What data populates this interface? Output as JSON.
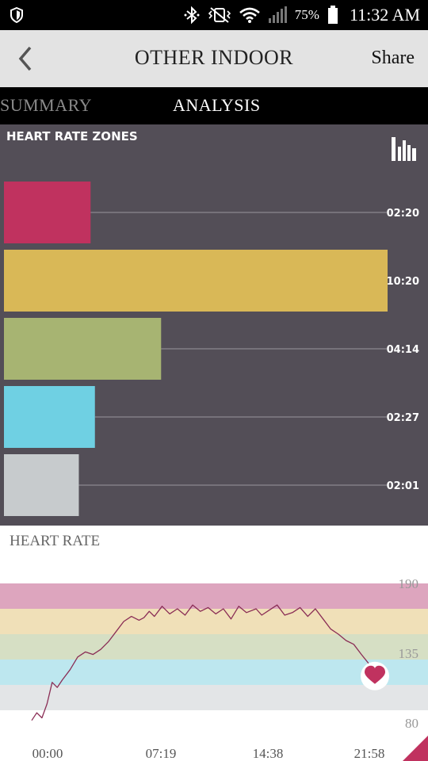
{
  "status_bar": {
    "battery": "75%",
    "time": "11:32 AM"
  },
  "app_bar": {
    "title": "OTHER INDOOR",
    "share_label": "Share"
  },
  "tabs": [
    {
      "label": "SUMMARY"
    },
    {
      "label": "ANALYSIS"
    }
  ],
  "zones_section": {
    "title": "HEART RATE ZONES"
  },
  "hr_section": {
    "title": "HEART RATE"
  },
  "colors": {
    "zone1": "#c0325f",
    "zone2": "#d9b857",
    "zone3": "#a7b472",
    "zone4": "#6fd0e3",
    "zone5": "#c7cbcd",
    "panel": "#534e57",
    "accent": "#c0325f"
  },
  "chart_data": [
    {
      "type": "bar",
      "title": "HEART RATE ZONES",
      "categories": [
        "zone 1",
        "zone 2",
        "zone 3",
        "zone 4",
        "zone 5"
      ],
      "labels": [
        "02:20",
        "10:20",
        "04:14",
        "02:27",
        "02:01"
      ],
      "values": [
        140,
        620,
        254,
        147,
        121
      ],
      "value_unit": "seconds",
      "colors": [
        "#c0325f",
        "#d9b857",
        "#a7b472",
        "#6fd0e3",
        "#c7cbcd"
      ]
    },
    {
      "type": "line",
      "title": "HEART RATE",
      "xlabels": [
        "00:00",
        "07:19",
        "14:38",
        "21:58"
      ],
      "xlim": [
        "00:00",
        "21:58"
      ],
      "ylabels": [
        "190",
        "135",
        "80"
      ],
      "ylim": [
        80,
        190
      ],
      "bands": [
        {
          "from": 170,
          "to": 190,
          "color": "#dda5be"
        },
        {
          "from": 150,
          "to": 170,
          "color": "#f0e0b8"
        },
        {
          "from": 130,
          "to": 150,
          "color": "#d6dfc4"
        },
        {
          "from": 110,
          "to": 130,
          "color": "#bde7ef"
        },
        {
          "from": 90,
          "to": 110,
          "color": "#e3e5e7"
        }
      ],
      "series": [
        {
          "x": [
            "00:00",
            "00:20",
            "00:40",
            "01:00",
            "01:20",
            "01:40",
            "02:00",
            "02:30",
            "03:00",
            "03:30",
            "04:00",
            "04:30",
            "05:00",
            "05:30",
            "06:00",
            "06:30",
            "07:00",
            "07:19",
            "07:40",
            "08:00",
            "08:30",
            "09:00",
            "09:30",
            "10:00",
            "10:30",
            "11:00",
            "11:30",
            "12:00",
            "12:30",
            "13:00",
            "13:30",
            "14:00",
            "14:38",
            "15:00",
            "15:30",
            "16:00",
            "16:30",
            "17:00",
            "17:30",
            "18:00",
            "18:30",
            "19:00",
            "19:30",
            "20:00",
            "20:30",
            "21:00",
            "21:30",
            "21:58"
          ],
          "y": [
            82,
            88,
            84,
            95,
            112,
            108,
            114,
            122,
            132,
            136,
            134,
            138,
            144,
            152,
            160,
            164,
            161,
            163,
            168,
            164,
            172,
            166,
            170,
            165,
            173,
            168,
            171,
            166,
            170,
            162,
            172,
            167,
            170,
            165,
            169,
            173,
            165,
            167,
            171,
            164,
            170,
            162,
            154,
            150,
            145,
            142,
            134,
            127
          ]
        }
      ],
      "end_marker": "heart-icon"
    }
  ]
}
